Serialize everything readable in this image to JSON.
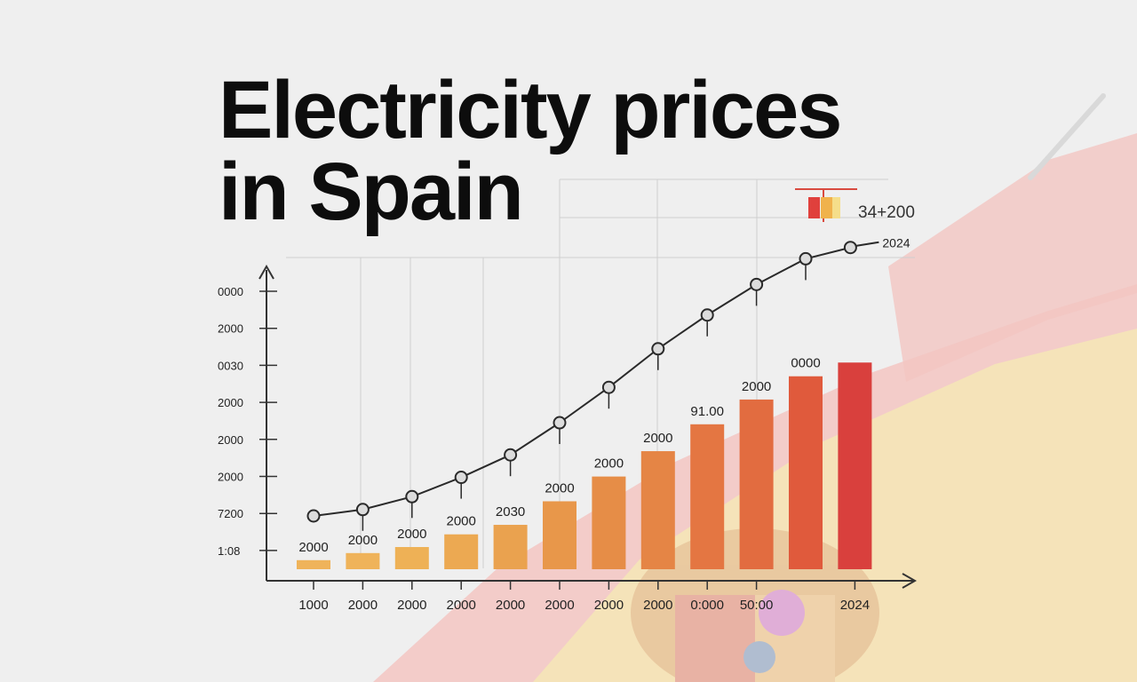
{
  "chart_data": {
    "type": "bar",
    "title_lines": [
      "Electricity prices",
      "in Spain"
    ],
    "y_tick_labels": [
      "0000",
      "2000",
      "0030",
      "2000",
      "2000",
      "2000",
      "7200",
      "1:08"
    ],
    "x_tick_labels": [
      "1000",
      "2000",
      "2000",
      "2000",
      "2000",
      "2000",
      "2000",
      "2000",
      "0:000",
      "50:00",
      "2024"
    ],
    "values": [
      0.06,
      0.107,
      0.147,
      0.231,
      0.294,
      0.45,
      0.614,
      0.782,
      0.96,
      1.124,
      1.278,
      1.369
    ],
    "bar_value_labels": [
      "2000",
      "2000",
      "2000",
      "2000",
      "2030",
      "2000",
      "2000",
      "2000",
      "91.00",
      "2000",
      "0000",
      ""
    ],
    "line_values": [
      0.25,
      0.29,
      0.37,
      0.49,
      0.63,
      0.83,
      1.05,
      1.29,
      1.5,
      1.69,
      1.85,
      1.92
    ],
    "line_end_label": "2024",
    "legend_label": "34+200",
    "ylim": [
      0,
      2.0
    ],
    "bar_colors": [
      "#efb35a",
      "#efb35a",
      "#eeb156",
      "#eca952",
      "#eaa24f",
      "#e8974a",
      "#e68d47",
      "#e58545",
      "#e47642",
      "#e26c40",
      "#e05a3c",
      "#d9403d"
    ],
    "grid": true,
    "legend_position": "top-right"
  },
  "colors": {
    "flag_red": "#f3c6c2",
    "flag_yellow": "#f5e6b6",
    "axis": "#333333",
    "grid": "#cfcfcf"
  }
}
